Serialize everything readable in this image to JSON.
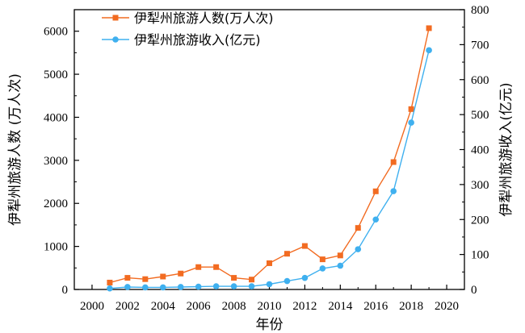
{
  "chart_data": {
    "type": "line",
    "x": [
      2001,
      2002,
      2003,
      2004,
      2005,
      2006,
      2007,
      2008,
      2009,
      2010,
      2011,
      2012,
      2013,
      2014,
      2015,
      2016,
      2017,
      2018,
      2019
    ],
    "xlabel": "年份",
    "xlim": [
      1999,
      2021
    ],
    "xticks": [
      2000,
      2002,
      2004,
      2006,
      2008,
      2010,
      2012,
      2014,
      2016,
      2018,
      2020
    ],
    "y_left": {
      "label": "伊犁州旅游人数 (万人次)",
      "lim": [
        0,
        6500
      ],
      "ticks": [
        0,
        1000,
        2000,
        3000,
        4000,
        5000,
        6000
      ]
    },
    "y_right": {
      "label": "伊犁州旅游收入(亿元)",
      "lim": [
        0,
        800
      ],
      "ticks": [
        0,
        100,
        200,
        300,
        400,
        500,
        600,
        700,
        800
      ]
    },
    "series": [
      {
        "name": "伊犁州旅游人数(万人次)",
        "axis": "left",
        "marker": "square",
        "color": "#f26b21",
        "values": [
          160,
          270,
          240,
          300,
          370,
          520,
          520,
          270,
          230,
          610,
          830,
          1010,
          700,
          790,
          1430,
          2280,
          2960,
          4190,
          6070
        ]
      },
      {
        "name": "伊犁州旅游收入(亿元)",
        "axis": "right",
        "marker": "circle",
        "color": "#3fb0ef",
        "values": [
          3,
          7,
          6,
          6,
          7,
          8,
          9,
          9,
          9,
          15,
          24,
          33,
          60,
          68,
          115,
          200,
          281,
          477,
          684
        ]
      }
    ],
    "legend_position": "top-center",
    "grid": false
  }
}
